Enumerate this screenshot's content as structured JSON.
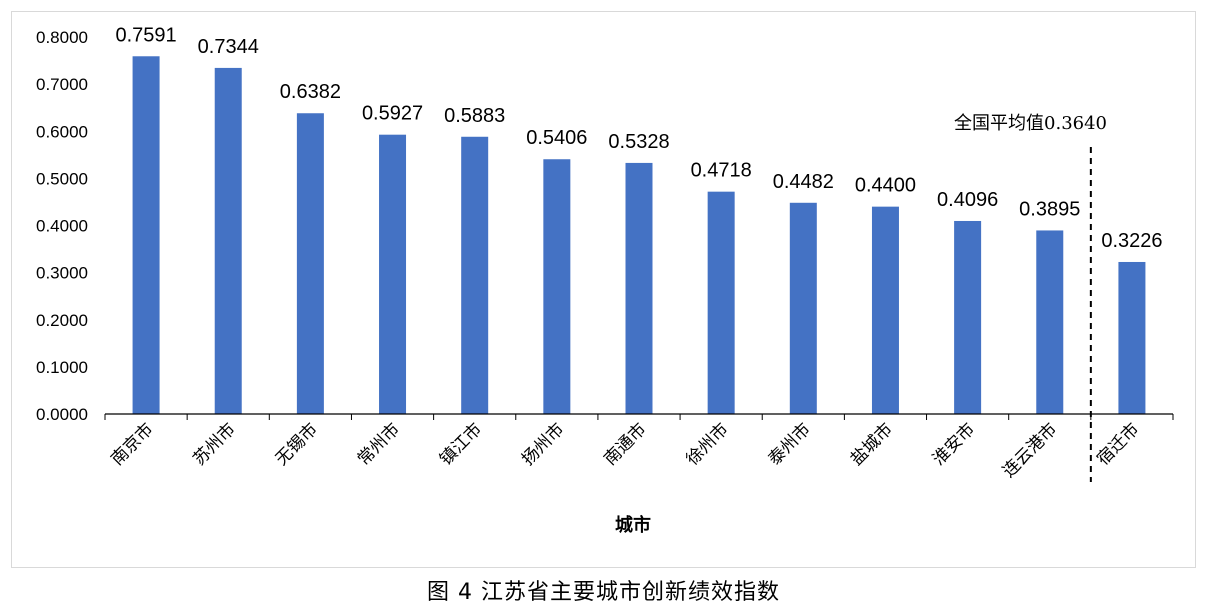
{
  "chart_data": {
    "type": "bar",
    "categories": [
      "南京市",
      "苏州市",
      "无锡市",
      "常州市",
      "镇江市",
      "扬州市",
      "南通市",
      "徐州市",
      "泰州市",
      "盐城市",
      "淮安市",
      "连云港市",
      "宿迁市"
    ],
    "values": [
      0.7591,
      0.7344,
      0.6382,
      0.5927,
      0.5883,
      0.5406,
      0.5328,
      0.4718,
      0.4482,
      0.44,
      0.4096,
      0.3895,
      0.3226
    ],
    "value_labels": [
      "0.7591",
      "0.7344",
      "0.6382",
      "0.5927",
      "0.5883",
      "0.5406",
      "0.5328",
      "0.4718",
      "0.4482",
      "0.4400",
      "0.4096",
      "0.3895",
      "0.3226"
    ],
    "title": "",
    "xlabel": "城市",
    "ylabel": "",
    "ylim": [
      0,
      0.8
    ],
    "yticks": [
      "0.0000",
      "0.1000",
      "0.2000",
      "0.3000",
      "0.4000",
      "0.5000",
      "0.6000",
      "0.7000",
      "0.8000"
    ],
    "bar_color": "#4472c4",
    "grid": false,
    "legend": "none",
    "annotation": {
      "text": "全国平均值0.3640",
      "style": "dashed vertical line",
      "between_categories": [
        "连云港市",
        "宿迁市"
      ]
    }
  },
  "caption": "图 4  江苏省主要城市创新绩效指数"
}
